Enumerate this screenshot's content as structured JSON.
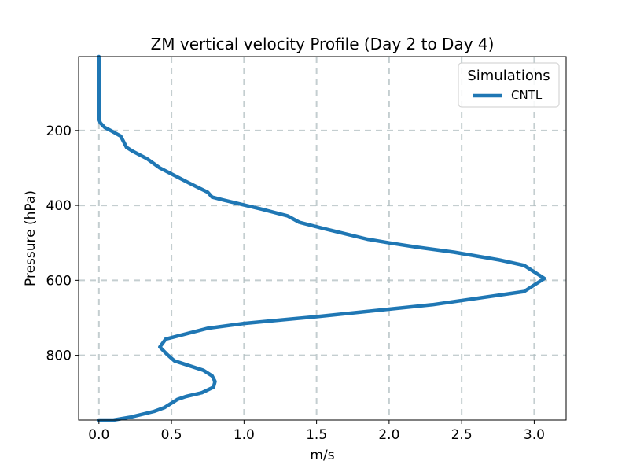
{
  "chart_data": {
    "type": "line",
    "title": "ZM vertical velocity Profile (Day 2 to Day 4)",
    "xlabel": "m/s",
    "ylabel": "Pressure (hPa)",
    "xlim": [
      -0.14,
      3.22
    ],
    "ylim": [
      973,
      3
    ],
    "y_inverted": true,
    "grid": true,
    "xticks": [
      0.0,
      0.5,
      1.0,
      1.5,
      2.0,
      2.5,
      3.0
    ],
    "xtick_labels": [
      "0.0",
      "0.5",
      "1.0",
      "1.5",
      "2.0",
      "2.5",
      "3.0"
    ],
    "yticks": [
      200,
      400,
      600,
      800
    ],
    "ytick_labels": [
      "200",
      "400",
      "600",
      "800"
    ],
    "legend": {
      "title": "Simulations",
      "position": "top-right"
    },
    "series": [
      {
        "name": "CNTL",
        "color": "#1f77b4",
        "x": [
          0.0,
          0.0,
          0.0,
          0.01,
          0.04,
          0.09,
          0.15,
          0.17,
          0.19,
          0.23,
          0.33,
          0.42,
          0.62,
          0.75,
          0.78,
          0.85,
          0.98,
          1.12,
          1.3,
          1.38,
          1.55,
          1.72,
          1.85,
          2.0,
          2.2,
          2.45,
          2.75,
          2.93,
          3.07,
          2.93,
          2.3,
          1.5,
          1.0,
          0.75,
          0.46,
          0.42,
          0.47,
          0.52,
          0.72,
          0.78,
          0.8,
          0.79,
          0.71,
          0.6,
          0.54,
          0.45,
          0.38,
          0.22,
          0.1,
          0.04,
          0.0
        ],
        "y": [
          3,
          80,
          170,
          180,
          192,
          202,
          215,
          230,
          245,
          255,
          275,
          300,
          340,
          365,
          378,
          385,
          397,
          410,
          428,
          445,
          462,
          478,
          490,
          500,
          512,
          525,
          545,
          560,
          595,
          630,
          665,
          697,
          715,
          728,
          757,
          778,
          798,
          815,
          840,
          855,
          870,
          885,
          900,
          910,
          918,
          940,
          950,
          965,
          973,
          976,
          978
        ]
      }
    ]
  }
}
